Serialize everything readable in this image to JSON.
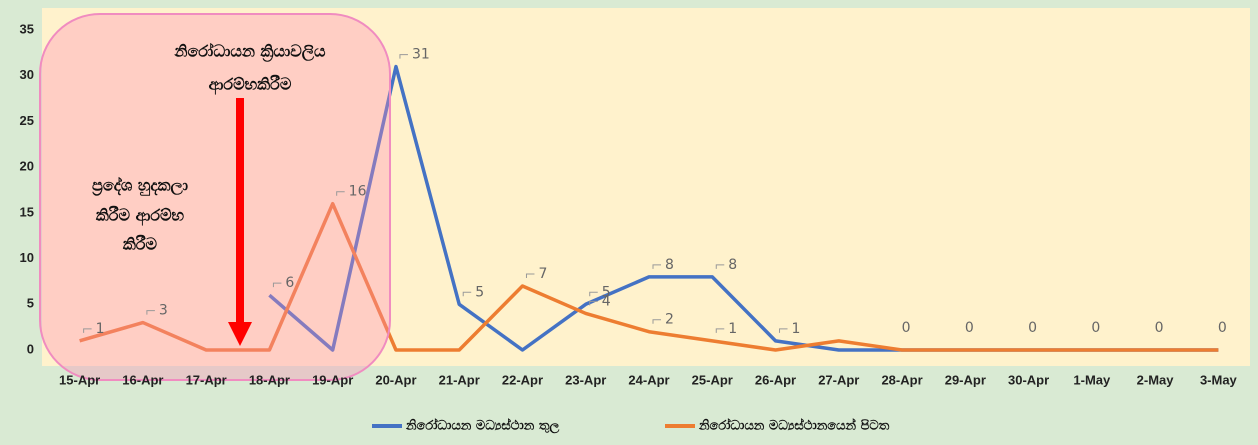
{
  "chart_data": {
    "type": "line",
    "categories": [
      "15-Apr",
      "16-Apr",
      "17-Apr",
      "18-Apr",
      "19-Apr",
      "20-Apr",
      "21-Apr",
      "22-Apr",
      "23-Apr",
      "24-Apr",
      "25-Apr",
      "26-Apr",
      "27-Apr",
      "28-Apr",
      "29-Apr",
      "30-Apr",
      "1-May",
      "2-May",
      "3-May"
    ],
    "series": [
      {
        "name": "නිරෝධායන මධ්‍යස්ථාන තුල",
        "color": "#4472c4",
        "values": [
          null,
          null,
          null,
          6,
          0,
          31,
          5,
          0,
          5,
          8,
          8,
          1,
          0,
          0,
          0,
          0,
          0,
          0,
          0
        ],
        "value_labels": [
          null,
          null,
          null,
          "6",
          null,
          "31",
          "5",
          null,
          "5",
          "8",
          "8",
          "1",
          null,
          null,
          null,
          null,
          null,
          null,
          null
        ]
      },
      {
        "name": "නිරෝධායන මධ්‍යස්ථානයෙන් පිටත",
        "color": "#ed7d31",
        "values": [
          1,
          3,
          0,
          0,
          16,
          0,
          0,
          7,
          4,
          2,
          1,
          0,
          1,
          0,
          0,
          0,
          0,
          0,
          0
        ],
        "value_labels": [
          "1",
          "3",
          null,
          null,
          "16",
          null,
          null,
          "7",
          "4",
          "2",
          "1",
          null,
          null,
          "0",
          "0",
          "0",
          "0",
          "0",
          "0"
        ]
      }
    ],
    "ylim": [
      0,
      35
    ],
    "yticks": [
      0,
      5,
      10,
      15,
      20,
      25,
      30,
      35
    ],
    "annotations": [
      {
        "lines": [
          "නිරෝධායන ක්‍රියාවලිය",
          "ආරම්භකිරීම"
        ]
      },
      {
        "lines": [
          "ප්‍රදේශ හුදකලා",
          "කිරීම ආරම්භ",
          "කිරීම"
        ]
      }
    ],
    "legend": "bottom"
  }
}
